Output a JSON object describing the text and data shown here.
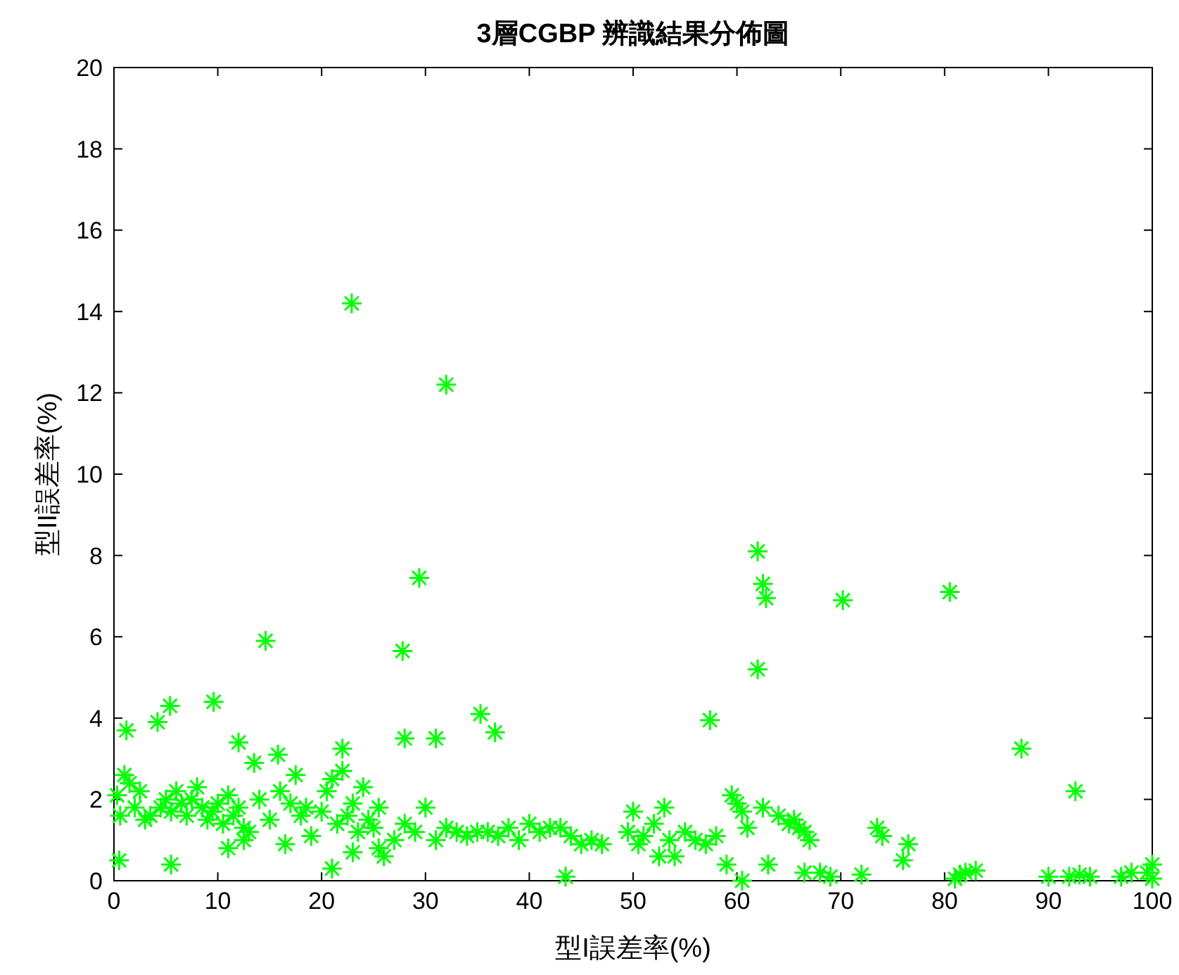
{
  "chart_data": {
    "type": "scatter",
    "title": "3層CGBP 辨識結果分佈圖",
    "xlabel": "型I誤差率(%)",
    "ylabel": "型II誤差率(%)",
    "xlim": [
      0,
      100
    ],
    "ylim": [
      0,
      20
    ],
    "xticks": [
      0,
      10,
      20,
      30,
      40,
      50,
      60,
      70,
      80,
      90,
      100
    ],
    "yticks": [
      0,
      2,
      4,
      6,
      8,
      10,
      12,
      14,
      16,
      18,
      20
    ],
    "marker": "cross",
    "series": [
      {
        "color": "#00ff00",
        "x": [
          22.9,
          32,
          29.4,
          27.8,
          14.6,
          62,
          62.5,
          62.8,
          70.2,
          80.5,
          62,
          57.4,
          87.4,
          92.6,
          35.3,
          36.7,
          28,
          31,
          9.6,
          5.4,
          4.2,
          1.2,
          22,
          12,
          15.8,
          13.5,
          0.3,
          0.6,
          1,
          1.5,
          2,
          2.5,
          3,
          3.5,
          4.5,
          5,
          5.5,
          6,
          6.5,
          7,
          7.5,
          8,
          8.5,
          9,
          9.5,
          10,
          10.5,
          11,
          11.5,
          12,
          12.5,
          13,
          14,
          15,
          16,
          17,
          17.5,
          18,
          18.5,
          19,
          20,
          20.5,
          21,
          21.5,
          22,
          22.5,
          23,
          23.5,
          24,
          24.5,
          25,
          25.5,
          26,
          27,
          28,
          29,
          30,
          31,
          32,
          33,
          34,
          35,
          36,
          37,
          38,
          39,
          40,
          41,
          42,
          43,
          44,
          45,
          46,
          47,
          49.5,
          50,
          50.5,
          51,
          52,
          53,
          53.5,
          54,
          55,
          56,
          57,
          58,
          59,
          59.5,
          60,
          60.5,
          61,
          62.5,
          63,
          64,
          65,
          65.5,
          66,
          66.5,
          67,
          68,
          69,
          72,
          73.5,
          74,
          76,
          76.5,
          81,
          81.5,
          82,
          83,
          90,
          92,
          93,
          94,
          97,
          98,
          99.5,
          100,
          100,
          0.5,
          5.5,
          11,
          12.5,
          16.5,
          21,
          23,
          25.5,
          43.5,
          52.5,
          60.5,
          66.5
        ],
        "values": [
          14.2,
          12.2,
          7.45,
          5.65,
          5.9,
          8.1,
          7.3,
          6.95,
          6.9,
          7.1,
          5.2,
          3.95,
          3.25,
          2.2,
          4.1,
          3.65,
          3.5,
          3.5,
          4.4,
          4.3,
          3.9,
          3.7,
          3.25,
          3.4,
          3.1,
          2.9,
          2.1,
          1.6,
          2.6,
          2.4,
          1.8,
          2.2,
          1.5,
          1.6,
          1.8,
          2.0,
          1.7,
          2.2,
          1.9,
          1.6,
          2.0,
          2.3,
          1.8,
          1.5,
          1.7,
          1.9,
          1.4,
          2.1,
          1.6,
          1.8,
          1.3,
          1.2,
          2.0,
          1.5,
          2.2,
          1.9,
          2.6,
          1.6,
          1.8,
          1.1,
          1.7,
          2.2,
          2.5,
          1.4,
          2.7,
          1.6,
          1.9,
          1.2,
          2.3,
          1.5,
          1.3,
          1.8,
          0.6,
          1.0,
          1.4,
          1.2,
          1.8,
          1.0,
          1.3,
          1.2,
          1.1,
          1.2,
          1.2,
          1.1,
          1.3,
          1.0,
          1.4,
          1.2,
          1.3,
          1.3,
          1.1,
          0.9,
          1.0,
          0.9,
          1.2,
          1.7,
          0.9,
          1.1,
          1.4,
          1.8,
          1.0,
          0.6,
          1.2,
          1.0,
          0.9,
          1.1,
          0.4,
          2.1,
          1.9,
          1.7,
          1.3,
          1.8,
          0.4,
          1.6,
          1.4,
          1.5,
          1.3,
          1.2,
          1.0,
          0.2,
          0.1,
          0.15,
          1.3,
          1.1,
          0.5,
          0.9,
          0.05,
          0.15,
          0.2,
          0.25,
          0.1,
          0.1,
          0.15,
          0.1,
          0.1,
          0.2,
          0.2,
          0.05,
          0.4,
          0.5,
          0.4,
          0.8,
          1.0,
          0.9,
          0.3,
          0.7,
          0.8,
          0.1,
          0.6,
          0.0,
          0.2
        ]
      }
    ]
  }
}
